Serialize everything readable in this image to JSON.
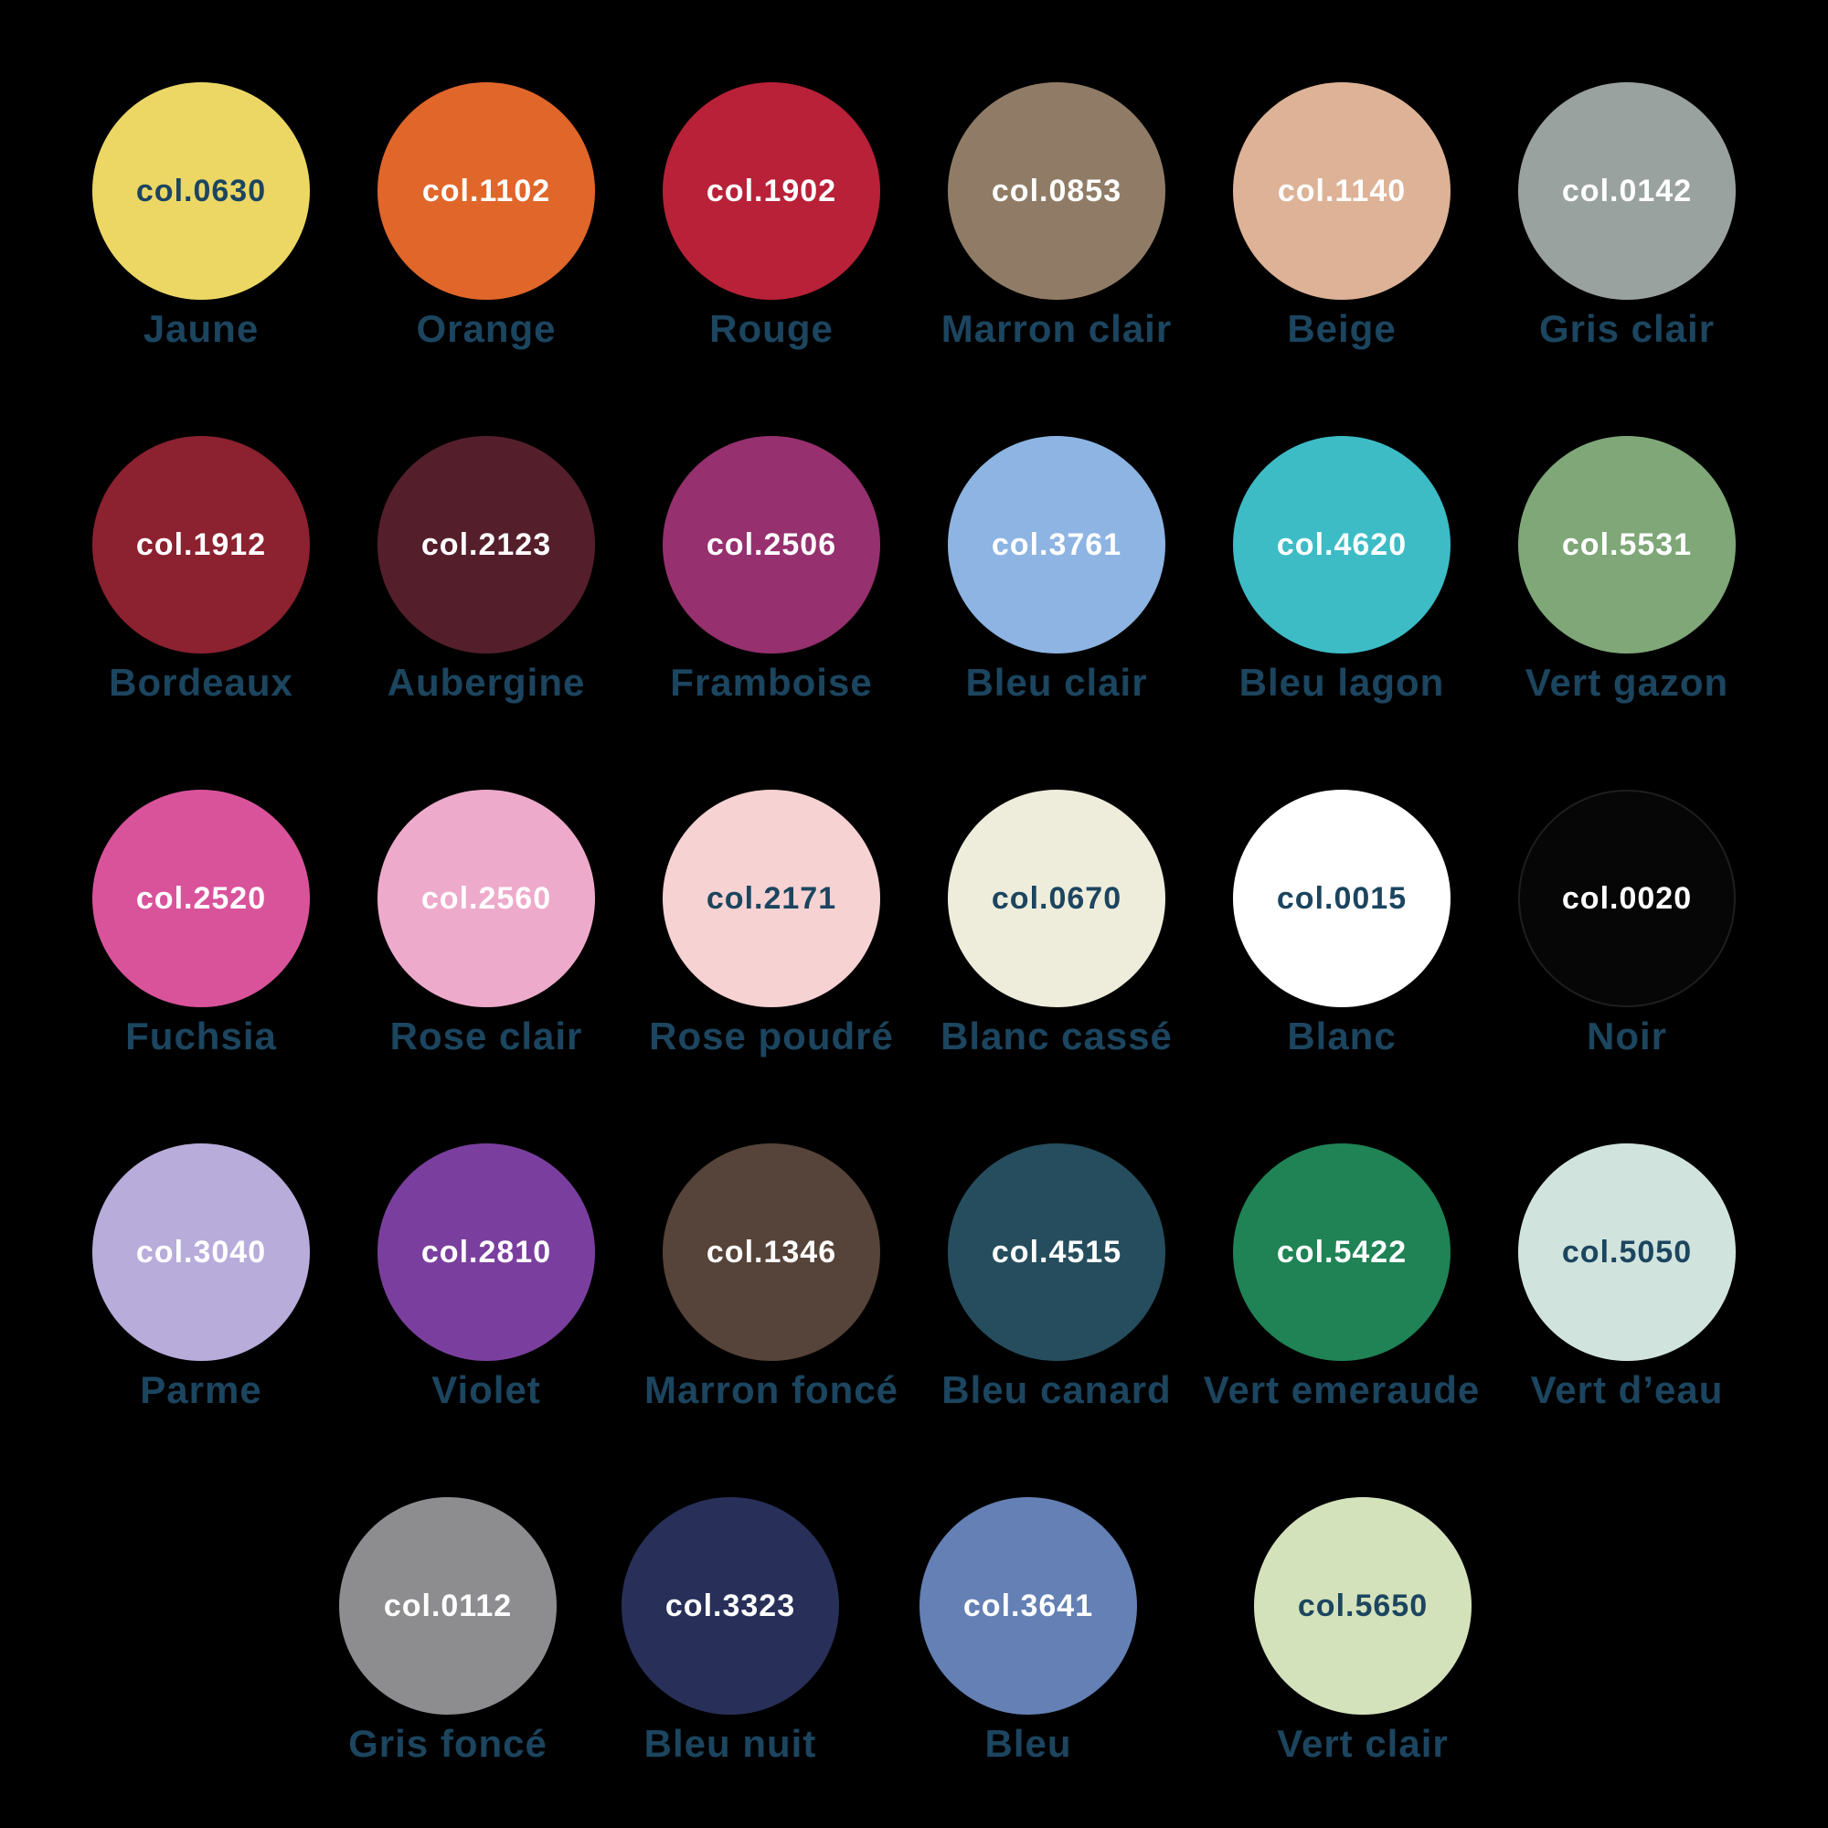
{
  "page": {
    "background": "#000000",
    "label_color": "#1c455f",
    "white_text": "#ffffff"
  },
  "rows": [
    {
      "items": [
        {
          "code": "col.0630",
          "label": "Jaune",
          "color": "#ecd765",
          "text_color": "#1c455f"
        },
        {
          "code": "col.1102",
          "label": "Orange",
          "color": "#e0662a",
          "text_color": "#ffffff"
        },
        {
          "code": "col.1902",
          "label": "Rouge",
          "color": "#b82138",
          "text_color": "#ffffff"
        },
        {
          "code": "col.0853",
          "label": "Marron clair",
          "color": "#907c66",
          "text_color": "#ffffff"
        },
        {
          "code": "col.1140",
          "label": "Beige",
          "color": "#ddb296",
          "text_color": "#ffffff"
        },
        {
          "code": "col.0142",
          "label": "Gris clair",
          "color": "#9aa2a0",
          "text_color": "#ffffff"
        }
      ]
    },
    {
      "items": [
        {
          "code": "col.1912",
          "label": "Bordeaux",
          "color": "#8c2130",
          "text_color": "#ffffff"
        },
        {
          "code": "col.2123",
          "label": "Aubergine",
          "color": "#541f2b",
          "text_color": "#ffffff"
        },
        {
          "code": "col.2506",
          "label": "Framboise",
          "color": "#96306e",
          "text_color": "#ffffff"
        },
        {
          "code": "col.3761",
          "label": "Bleu clair",
          "color": "#8db4e2",
          "text_color": "#ffffff"
        },
        {
          "code": "col.4620",
          "label": "Bleu lagon",
          "color": "#3dbcc6",
          "text_color": "#ffffff"
        },
        {
          "code": "col.5531",
          "label": "Vert gazon",
          "color": "#7fa778",
          "text_color": "#ffffff"
        }
      ]
    },
    {
      "items": [
        {
          "code": "col.2520",
          "label": "Fuchsia",
          "color": "#d9539b",
          "text_color": "#ffffff"
        },
        {
          "code": "col.2560",
          "label": "Rose clair",
          "color": "#eeaacb",
          "text_color": "#ffffff"
        },
        {
          "code": "col.2171",
          "label": "Rose poudré",
          "color": "#f7d2d2",
          "text_color": "#1c455f"
        },
        {
          "code": "col.0670",
          "label": "Blanc cassé",
          "color": "#eeeddc",
          "text_color": "#1c455f"
        },
        {
          "code": "col.0015",
          "label": "Blanc",
          "color": "#ffffff",
          "text_color": "#1c455f"
        },
        {
          "code": "col.0020",
          "label": "Noir",
          "color": "#060606",
          "text_color": "#ffffff"
        }
      ]
    },
    {
      "items": [
        {
          "code": "col.3040",
          "label": "Parme",
          "color": "#b8acdb",
          "text_color": "#ffffff"
        },
        {
          "code": "col.2810",
          "label": "Violet",
          "color": "#7a3f9e",
          "text_color": "#ffffff"
        },
        {
          "code": "col.1346",
          "label": "Marron foncé",
          "color": "#564339",
          "text_color": "#ffffff"
        },
        {
          "code": "col.4515",
          "label": "Bleu canard",
          "color": "#254d5d",
          "text_color": "#ffffff"
        },
        {
          "code": "col.5422",
          "label": "Vert emeraude",
          "color": "#1f8355",
          "text_color": "#ffffff"
        },
        {
          "code": "col.5050",
          "label": "Vert d’eau",
          "color": "#d0e4dd",
          "text_color": "#1c455f"
        }
      ]
    },
    {
      "items": [
        {
          "code": "col.0112",
          "label": "Gris foncé",
          "color": "#8d8d8f",
          "text_color": "#ffffff"
        },
        {
          "code": "col.3323",
          "label": "Bleu nuit",
          "color": "#283059",
          "text_color": "#ffffff"
        },
        {
          "code": "col.3641",
          "label": "Bleu",
          "color": "#6480b4",
          "text_color": "#ffffff"
        },
        {
          "code": "col.5650",
          "label": "Vert clair",
          "color": "#d4e2bc",
          "text_color": "#1c455f"
        }
      ]
    }
  ]
}
